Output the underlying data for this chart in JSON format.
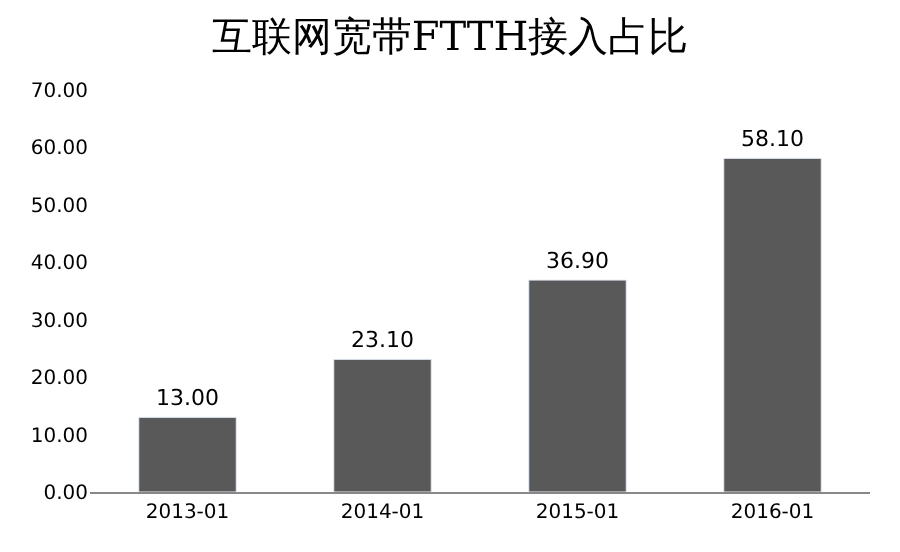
{
  "chart_data": {
    "type": "bar",
    "title": "互联网宽带FTTH接入占比",
    "categories": [
      "2013-01",
      "2014-01",
      "2015-01",
      "2016-01"
    ],
    "values": [
      13.0,
      23.1,
      36.9,
      58.1
    ],
    "value_labels": [
      "13.00",
      "23.10",
      "36.90",
      "58.10"
    ],
    "color": "#595959",
    "ylim": [
      0,
      70
    ],
    "yticks": [
      {
        "value": 0,
        "label": "0.00"
      },
      {
        "value": 10,
        "label": "10.00"
      },
      {
        "value": 20,
        "label": "20.00"
      },
      {
        "value": 30,
        "label": "30.00"
      },
      {
        "value": 40,
        "label": "40.00"
      },
      {
        "value": 50,
        "label": "50.00"
      },
      {
        "value": 60,
        "label": "60.00"
      },
      {
        "value": 70,
        "label": "70.00"
      }
    ],
    "legend": false
  }
}
